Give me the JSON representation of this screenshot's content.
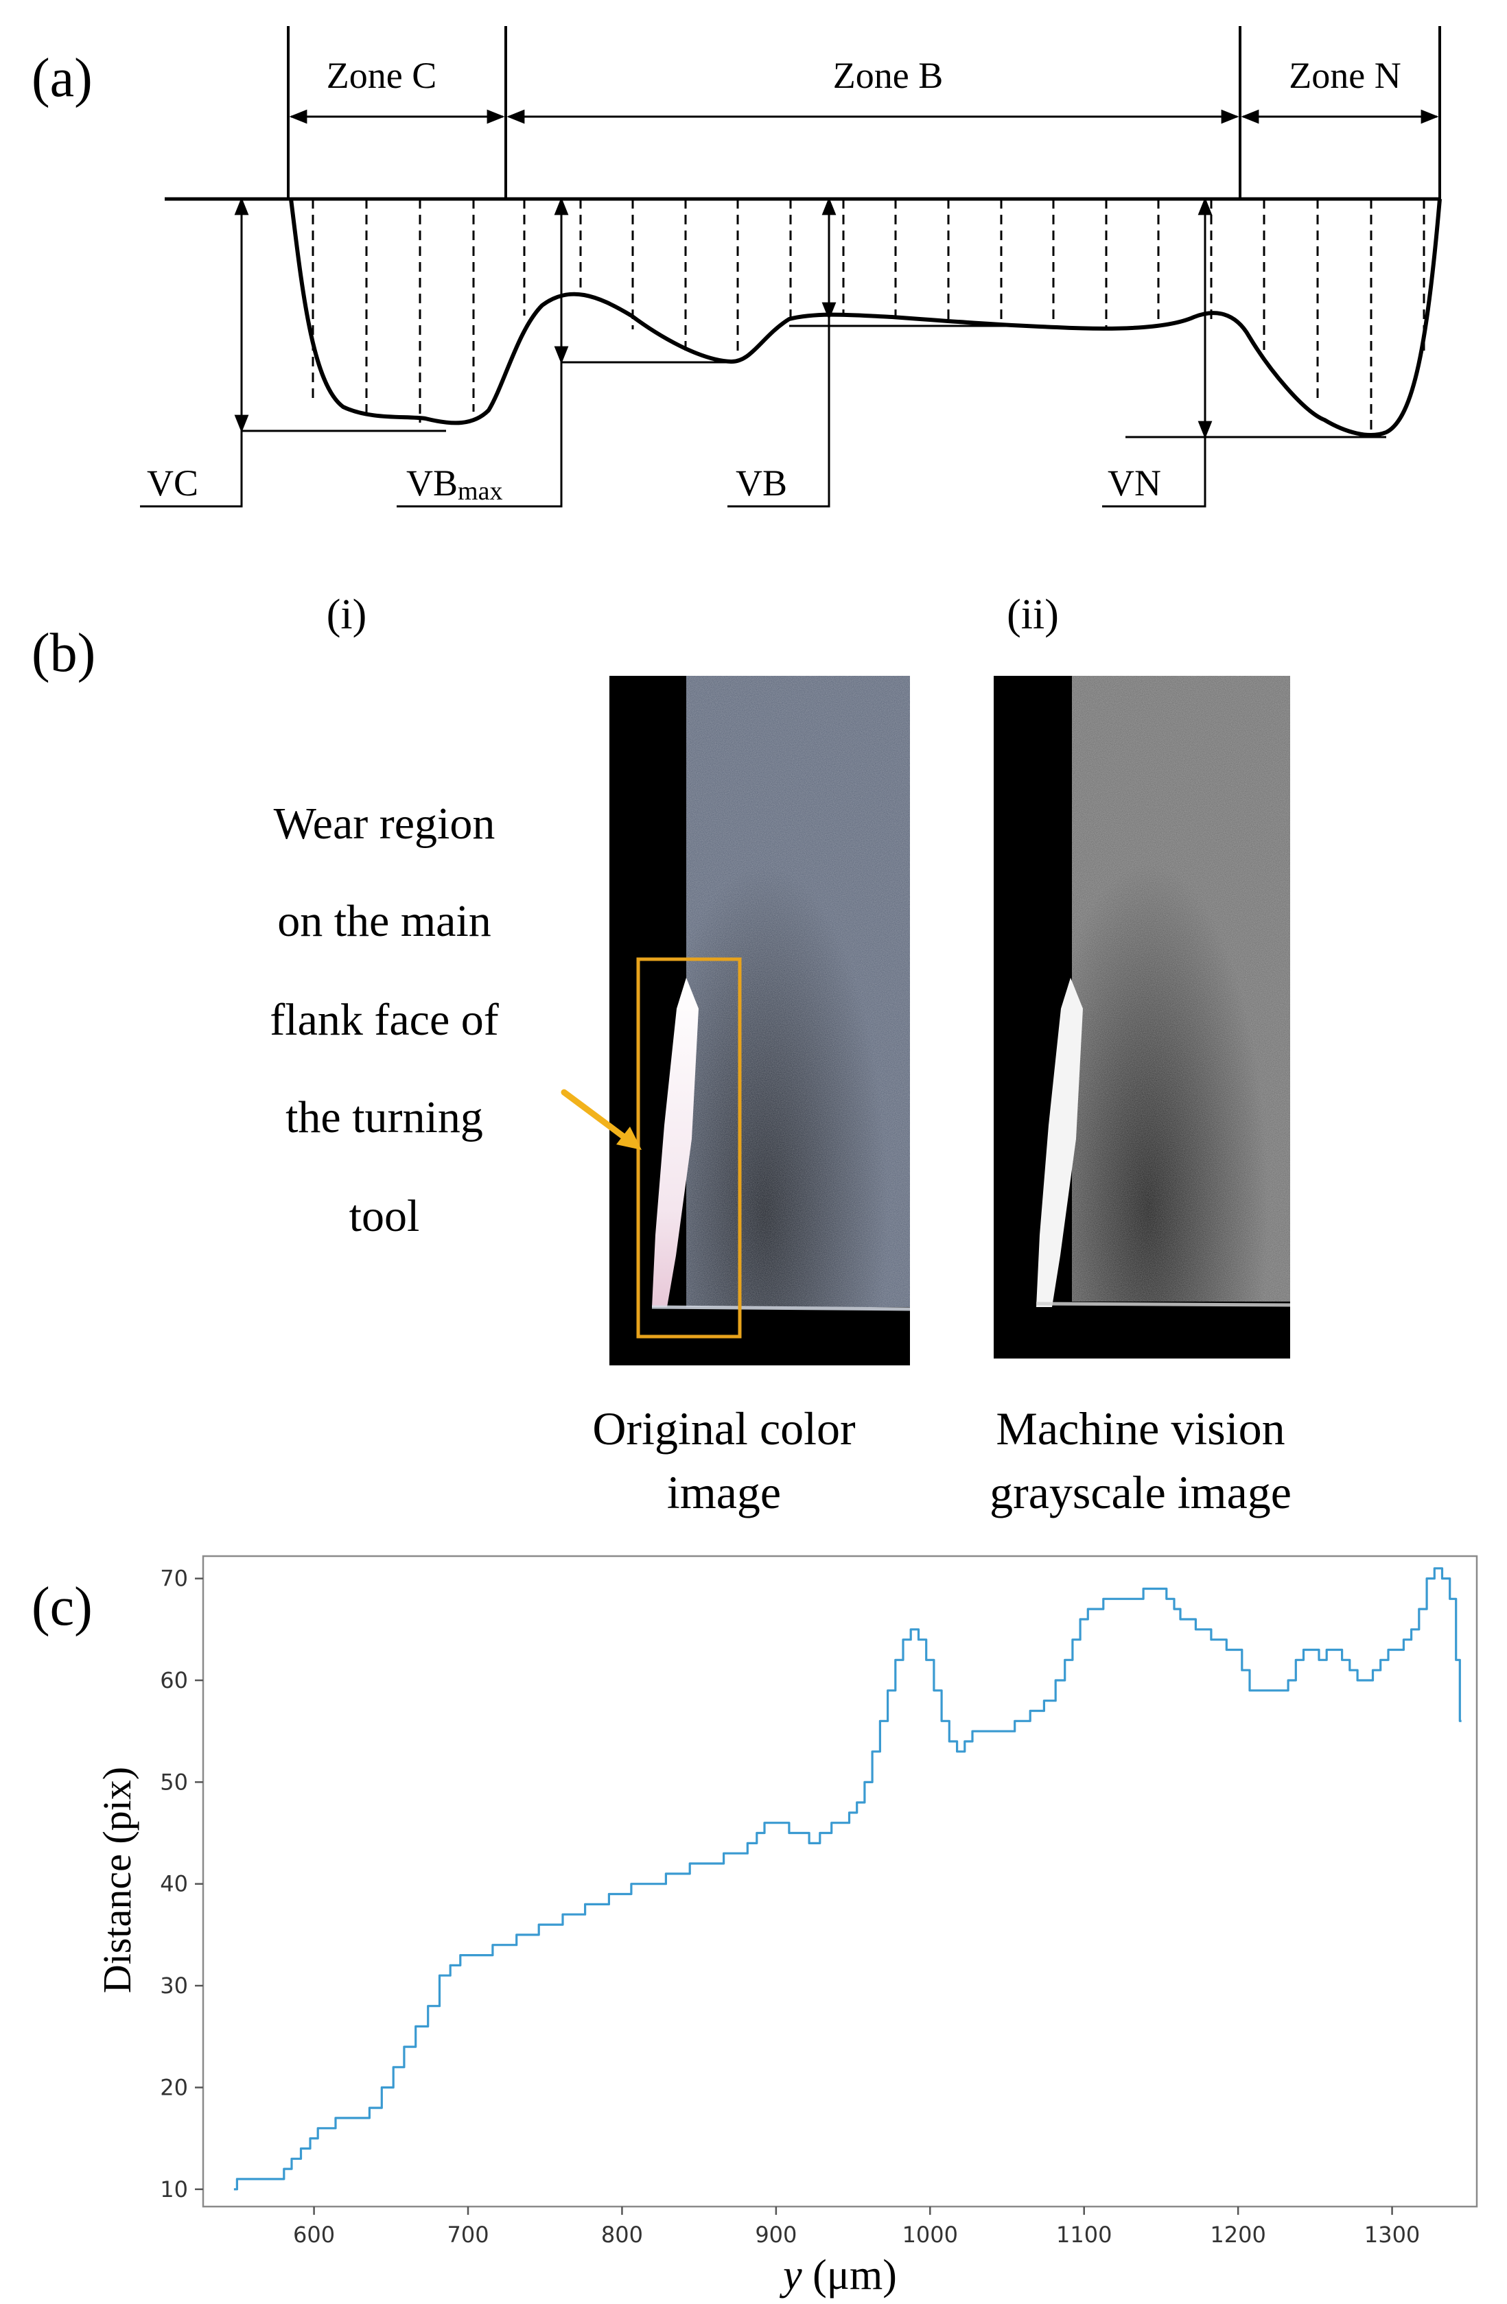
{
  "panel_a": {
    "panel_label": "(a)",
    "zones": [
      "Zone C",
      "Zone B",
      "Zone N"
    ],
    "measures": {
      "vc": "VC",
      "vbmax_main": "VB",
      "vbmax_sub": "max",
      "vb": "VB",
      "vn": "VN"
    }
  },
  "panel_b": {
    "panel_label": "(b)",
    "sub_i": "(i)",
    "sub_ii": "(ii)",
    "callout_lines": [
      "Wear region",
      "on the main",
      "flank face of",
      "the turning",
      "tool"
    ],
    "caption_i": [
      "Original color",
      "image"
    ],
    "caption_ii": [
      "Machine vision",
      "grayscale image"
    ],
    "colors": {
      "highlight_box": "#e8a31c",
      "arrow": "#f2b21b"
    }
  },
  "panel_c": {
    "panel_label": "(c)",
    "chart_data": {
      "type": "line",
      "xlabel_var": "y",
      "xlabel_unit": " (μm)",
      "ylabel": "Distance (pix)",
      "xlim": [
        528,
        1355
      ],
      "ylim": [
        8.3,
        72.2
      ],
      "xticks": [
        600,
        700,
        800,
        900,
        1000,
        1100,
        1200,
        1300
      ],
      "yticks": [
        10,
        20,
        30,
        40,
        50,
        60,
        70
      ],
      "line_color": "#3a9ad1",
      "series": [
        {
          "x": [
            548,
            552,
            560,
            570,
            578,
            583,
            588,
            595,
            600,
            605,
            610,
            618,
            625,
            632,
            640,
            648,
            655,
            662,
            670,
            678,
            685,
            692,
            698,
            705,
            712,
            720,
            728,
            735,
            742,
            750,
            758,
            765,
            772,
            780,
            788,
            795,
            802,
            810,
            818,
            825,
            832,
            840,
            848,
            855,
            862,
            870,
            878,
            885,
            890,
            895,
            900,
            905,
            912,
            918,
            925,
            932,
            940,
            945,
            950,
            955,
            960,
            965,
            970,
            975,
            980,
            985,
            990,
            995,
            1000,
            1005,
            1010,
            1015,
            1020,
            1025,
            1030,
            1035,
            1040,
            1045,
            1050,
            1060,
            1070,
            1078,
            1085,
            1090,
            1095,
            1100,
            1105,
            1110,
            1115,
            1120,
            1128,
            1135,
            1142,
            1150,
            1157,
            1160,
            1165,
            1170,
            1175,
            1180,
            1185,
            1190,
            1195,
            1200,
            1205,
            1210,
            1215,
            1220,
            1225,
            1230,
            1235,
            1240,
            1245,
            1250,
            1255,
            1260,
            1265,
            1270,
            1275,
            1280,
            1285,
            1290,
            1295,
            1300,
            1305,
            1310,
            1315,
            1320,
            1325,
            1330,
            1335,
            1340,
            1343,
            1345
          ],
          "y": [
            10,
            11,
            11,
            11,
            11,
            12,
            13,
            14,
            15,
            16,
            16,
            17,
            17,
            17,
            18,
            20,
            22,
            24,
            26,
            28,
            31,
            32,
            33,
            33,
            33,
            34,
            34,
            35,
            35,
            36,
            36,
            37,
            37,
            38,
            38,
            39,
            39,
            40,
            40,
            40,
            41,
            41,
            42,
            42,
            42,
            43,
            43,
            44,
            45,
            46,
            46,
            46,
            45,
            45,
            44,
            45,
            46,
            46,
            47,
            48,
            50,
            53,
            56,
            59,
            62,
            64,
            65,
            64,
            62,
            59,
            56,
            54,
            53,
            54,
            55,
            55,
            55,
            55,
            55,
            56,
            57,
            58,
            60,
            62,
            64,
            66,
            67,
            67,
            68,
            68,
            68,
            68,
            69,
            69,
            68,
            67,
            66,
            66,
            65,
            65,
            64,
            64,
            63,
            63,
            61,
            59,
            59,
            59,
            59,
            59,
            60,
            62,
            63,
            63,
            62,
            63,
            63,
            62,
            61,
            60,
            60,
            61,
            62,
            63,
            63,
            64,
            65,
            67,
            70,
            71,
            70,
            68,
            62,
            56
          ]
        }
      ]
    }
  }
}
